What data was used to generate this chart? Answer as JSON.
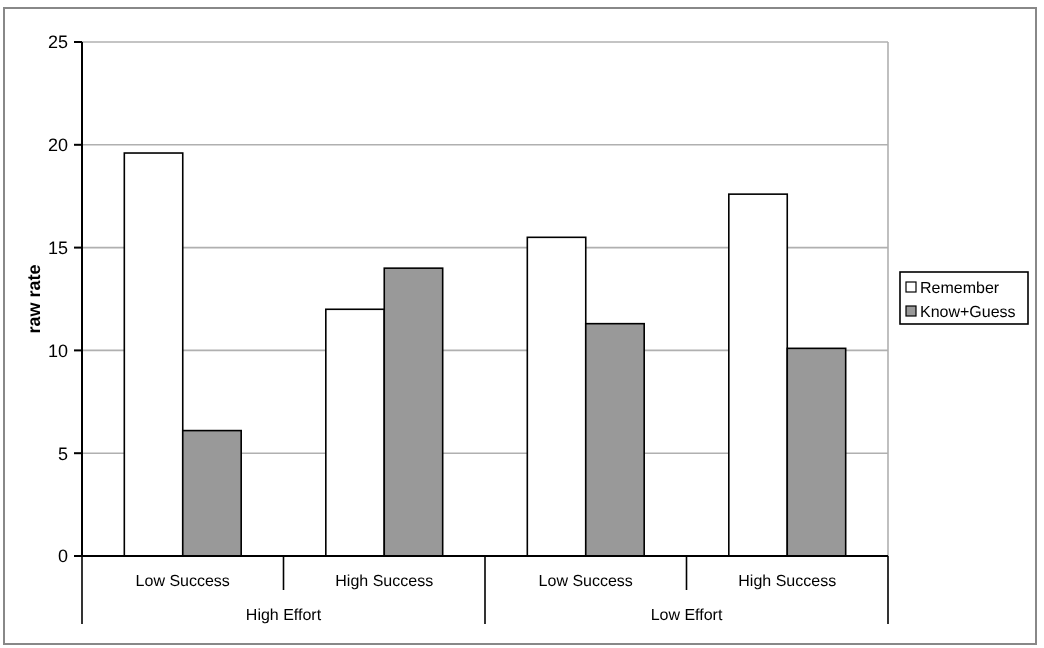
{
  "chart_data": {
    "type": "bar",
    "ylabel": "raw rate",
    "categories": [
      "Low Success",
      "High Success",
      "Low Success",
      "High Success"
    ],
    "annotations": [
      "High Effort",
      "Low Effort"
    ],
    "series": [
      {
        "name": "Remember",
        "color": "#ffffff",
        "values": [
          19.6,
          12.0,
          15.5,
          17.6
        ]
      },
      {
        "name": "Know+Guess",
        "color": "#999999",
        "values": [
          6.1,
          14.0,
          11.3,
          10.1
        ]
      }
    ],
    "ylim": [
      0,
      25
    ],
    "yticks": [
      0,
      5,
      10,
      15,
      20,
      25
    ],
    "grid": "y",
    "legend": "right"
  }
}
